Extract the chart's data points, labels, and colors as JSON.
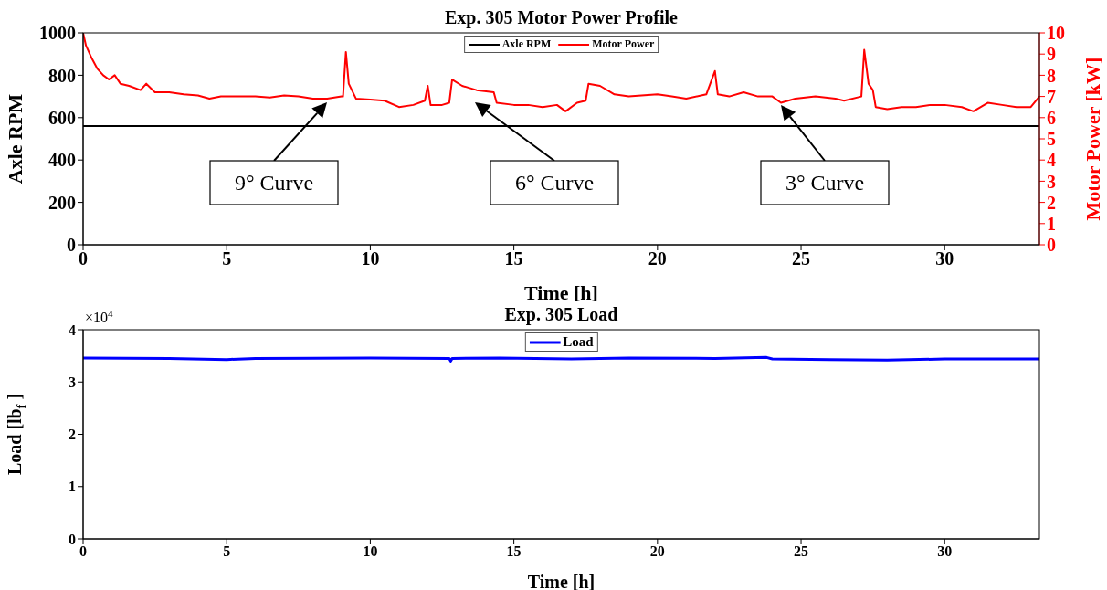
{
  "chart_data": [
    {
      "type": "line",
      "title": "Exp. 305 Motor Power Profile",
      "xlabel": "Time [h]",
      "ylabel": "Axle RPM",
      "y2label": "Motor Power [kW]",
      "xlim": [
        0,
        33.3
      ],
      "xticks": [
        0,
        5,
        10,
        15,
        20,
        25,
        30
      ],
      "ylim": [
        0,
        1000
      ],
      "yticks": [
        0,
        200,
        400,
        600,
        800,
        1000
      ],
      "y2lim": [
        0,
        10
      ],
      "y2ticks": [
        0,
        1,
        2,
        3,
        4,
        5,
        6,
        7,
        8,
        9,
        10
      ],
      "legend": "top",
      "series": [
        {
          "name": "Axle RPM",
          "color": "#000000",
          "x": [
            0,
            33.3
          ],
          "values": [
            560,
            560
          ]
        },
        {
          "name": "Motor Power",
          "color": "#ff0000",
          "axis": "y2",
          "x": [
            0,
            0.1,
            0.3,
            0.5,
            0.7,
            0.9,
            1.1,
            1.3,
            1.6,
            2.0,
            2.2,
            2.5,
            3,
            3.5,
            4,
            4.4,
            4.8,
            5.3,
            6,
            6.5,
            7,
            7.5,
            8,
            8.5,
            9,
            9.05,
            9.15,
            9.25,
            9.5,
            10,
            10.5,
            11,
            11.5,
            11.9,
            12,
            12.1,
            12.5,
            12.75,
            12.85,
            13.2,
            13.7,
            14.3,
            14.4,
            15,
            15.5,
            16,
            16.5,
            16.8,
            17.2,
            17.5,
            17.6,
            18,
            18.5,
            19,
            20,
            20.5,
            21,
            21.7,
            22,
            22.1,
            22.5,
            23,
            23.5,
            24,
            24.3,
            24.8,
            25.5,
            26.2,
            26.5,
            27.1,
            27.2,
            27.35,
            27.5,
            27.6,
            28,
            28.5,
            29,
            29.5,
            30,
            30.6,
            31,
            31.5,
            32,
            32.5,
            33,
            33.3
          ],
          "values": [
            10,
            9.4,
            8.8,
            8.3,
            8.0,
            7.8,
            8.0,
            7.6,
            7.5,
            7.3,
            7.6,
            7.2,
            7.2,
            7.1,
            7.05,
            6.9,
            7.0,
            7.0,
            7.0,
            6.95,
            7.05,
            7.0,
            6.9,
            6.9,
            7.0,
            7.0,
            9.1,
            7.6,
            6.9,
            6.85,
            6.8,
            6.5,
            6.6,
            6.8,
            7.5,
            6.6,
            6.6,
            6.7,
            7.8,
            7.5,
            7.3,
            7.2,
            6.7,
            6.6,
            6.6,
            6.5,
            6.6,
            6.3,
            6.7,
            6.8,
            7.6,
            7.5,
            7.1,
            7.0,
            7.1,
            7.0,
            6.9,
            7.1,
            8.2,
            7.1,
            7.0,
            7.2,
            7.0,
            7.0,
            6.7,
            6.9,
            7.0,
            6.9,
            6.8,
            7.0,
            9.2,
            7.6,
            7.3,
            6.5,
            6.4,
            6.5,
            6.5,
            6.6,
            6.6,
            6.5,
            6.3,
            6.7,
            6.6,
            6.5,
            6.5,
            7.0
          ]
        }
      ],
      "annotations": [
        "9° Curve",
        "6° Curve",
        "3° Curve"
      ]
    },
    {
      "type": "line",
      "title": "Exp. 305 Load",
      "xlabel": "Time [h]",
      "ylabel": "Load [lb$_{f}$]",
      "xlim": [
        0,
        33.3
      ],
      "xticks": [
        0,
        5,
        10,
        15,
        20,
        25,
        30
      ],
      "ylim": [
        0,
        4
      ],
      "yticks": [
        0,
        1,
        2,
        3,
        4
      ],
      "legend": "top",
      "series": [
        {
          "name": "Load",
          "color": "#0000ff",
          "x": [
            0,
            3,
            5,
            6,
            10,
            12.75,
            12.8,
            12.85,
            14.5,
            17,
            19,
            22,
            23.8,
            24,
            26,
            28,
            30,
            33.3
          ],
          "values": [
            3.46,
            3.45,
            3.43,
            3.45,
            3.46,
            3.45,
            3.4,
            3.45,
            3.46,
            3.44,
            3.46,
            3.45,
            3.47,
            3.44,
            3.43,
            3.42,
            3.44,
            3.44
          ]
        }
      ],
      "annotations": [
        "×10$^{4}$"
      ]
    }
  ]
}
